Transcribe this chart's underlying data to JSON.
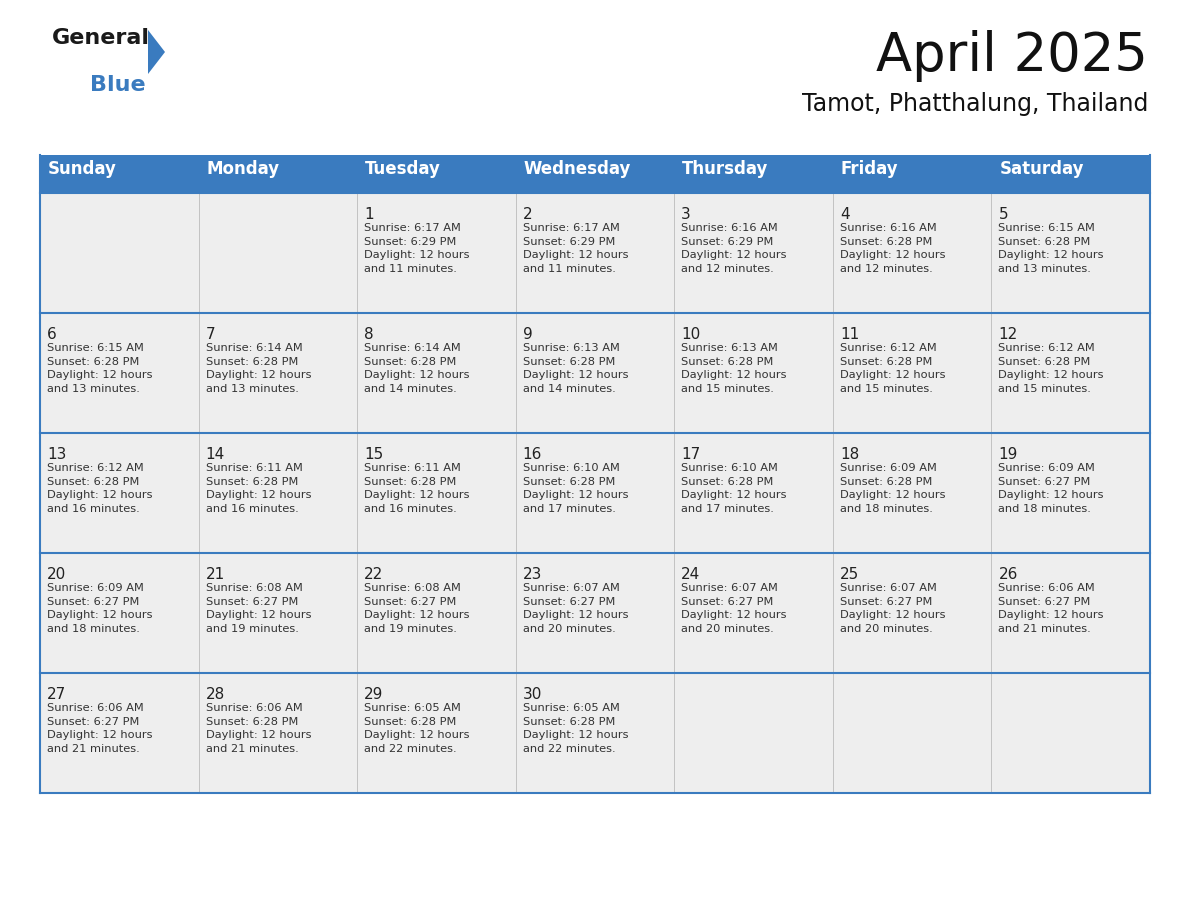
{
  "title": "April 2025",
  "subtitle": "Tamot, Phatthalung, Thailand",
  "header_color": "#3a7bbf",
  "header_text_color": "#ffffff",
  "cell_bg_color": "#eeeeee",
  "border_color": "#3a7bbf",
  "thin_border_color": "#aaaaaa",
  "day_headers": [
    "Sunday",
    "Monday",
    "Tuesday",
    "Wednesday",
    "Thursday",
    "Friday",
    "Saturday"
  ],
  "weeks": [
    [
      {
        "day": "",
        "info": ""
      },
      {
        "day": "",
        "info": ""
      },
      {
        "day": "1",
        "info": "Sunrise: 6:17 AM\nSunset: 6:29 PM\nDaylight: 12 hours\nand 11 minutes."
      },
      {
        "day": "2",
        "info": "Sunrise: 6:17 AM\nSunset: 6:29 PM\nDaylight: 12 hours\nand 11 minutes."
      },
      {
        "day": "3",
        "info": "Sunrise: 6:16 AM\nSunset: 6:29 PM\nDaylight: 12 hours\nand 12 minutes."
      },
      {
        "day": "4",
        "info": "Sunrise: 6:16 AM\nSunset: 6:28 PM\nDaylight: 12 hours\nand 12 minutes."
      },
      {
        "day": "5",
        "info": "Sunrise: 6:15 AM\nSunset: 6:28 PM\nDaylight: 12 hours\nand 13 minutes."
      }
    ],
    [
      {
        "day": "6",
        "info": "Sunrise: 6:15 AM\nSunset: 6:28 PM\nDaylight: 12 hours\nand 13 minutes."
      },
      {
        "day": "7",
        "info": "Sunrise: 6:14 AM\nSunset: 6:28 PM\nDaylight: 12 hours\nand 13 minutes."
      },
      {
        "day": "8",
        "info": "Sunrise: 6:14 AM\nSunset: 6:28 PM\nDaylight: 12 hours\nand 14 minutes."
      },
      {
        "day": "9",
        "info": "Sunrise: 6:13 AM\nSunset: 6:28 PM\nDaylight: 12 hours\nand 14 minutes."
      },
      {
        "day": "10",
        "info": "Sunrise: 6:13 AM\nSunset: 6:28 PM\nDaylight: 12 hours\nand 15 minutes."
      },
      {
        "day": "11",
        "info": "Sunrise: 6:12 AM\nSunset: 6:28 PM\nDaylight: 12 hours\nand 15 minutes."
      },
      {
        "day": "12",
        "info": "Sunrise: 6:12 AM\nSunset: 6:28 PM\nDaylight: 12 hours\nand 15 minutes."
      }
    ],
    [
      {
        "day": "13",
        "info": "Sunrise: 6:12 AM\nSunset: 6:28 PM\nDaylight: 12 hours\nand 16 minutes."
      },
      {
        "day": "14",
        "info": "Sunrise: 6:11 AM\nSunset: 6:28 PM\nDaylight: 12 hours\nand 16 minutes."
      },
      {
        "day": "15",
        "info": "Sunrise: 6:11 AM\nSunset: 6:28 PM\nDaylight: 12 hours\nand 16 minutes."
      },
      {
        "day": "16",
        "info": "Sunrise: 6:10 AM\nSunset: 6:28 PM\nDaylight: 12 hours\nand 17 minutes."
      },
      {
        "day": "17",
        "info": "Sunrise: 6:10 AM\nSunset: 6:28 PM\nDaylight: 12 hours\nand 17 minutes."
      },
      {
        "day": "18",
        "info": "Sunrise: 6:09 AM\nSunset: 6:28 PM\nDaylight: 12 hours\nand 18 minutes."
      },
      {
        "day": "19",
        "info": "Sunrise: 6:09 AM\nSunset: 6:27 PM\nDaylight: 12 hours\nand 18 minutes."
      }
    ],
    [
      {
        "day": "20",
        "info": "Sunrise: 6:09 AM\nSunset: 6:27 PM\nDaylight: 12 hours\nand 18 minutes."
      },
      {
        "day": "21",
        "info": "Sunrise: 6:08 AM\nSunset: 6:27 PM\nDaylight: 12 hours\nand 19 minutes."
      },
      {
        "day": "22",
        "info": "Sunrise: 6:08 AM\nSunset: 6:27 PM\nDaylight: 12 hours\nand 19 minutes."
      },
      {
        "day": "23",
        "info": "Sunrise: 6:07 AM\nSunset: 6:27 PM\nDaylight: 12 hours\nand 20 minutes."
      },
      {
        "day": "24",
        "info": "Sunrise: 6:07 AM\nSunset: 6:27 PM\nDaylight: 12 hours\nand 20 minutes."
      },
      {
        "day": "25",
        "info": "Sunrise: 6:07 AM\nSunset: 6:27 PM\nDaylight: 12 hours\nand 20 minutes."
      },
      {
        "day": "26",
        "info": "Sunrise: 6:06 AM\nSunset: 6:27 PM\nDaylight: 12 hours\nand 21 minutes."
      }
    ],
    [
      {
        "day": "27",
        "info": "Sunrise: 6:06 AM\nSunset: 6:27 PM\nDaylight: 12 hours\nand 21 minutes."
      },
      {
        "day": "28",
        "info": "Sunrise: 6:06 AM\nSunset: 6:28 PM\nDaylight: 12 hours\nand 21 minutes."
      },
      {
        "day": "29",
        "info": "Sunrise: 6:05 AM\nSunset: 6:28 PM\nDaylight: 12 hours\nand 22 minutes."
      },
      {
        "day": "30",
        "info": "Sunrise: 6:05 AM\nSunset: 6:28 PM\nDaylight: 12 hours\nand 22 minutes."
      },
      {
        "day": "",
        "info": ""
      },
      {
        "day": "",
        "info": ""
      },
      {
        "day": "",
        "info": ""
      }
    ]
  ],
  "title_fontsize": 38,
  "subtitle_fontsize": 17,
  "header_fontsize": 12,
  "day_num_fontsize": 11,
  "info_fontsize": 8.2,
  "logo_general_fontsize": 16,
  "logo_blue_fontsize": 16
}
